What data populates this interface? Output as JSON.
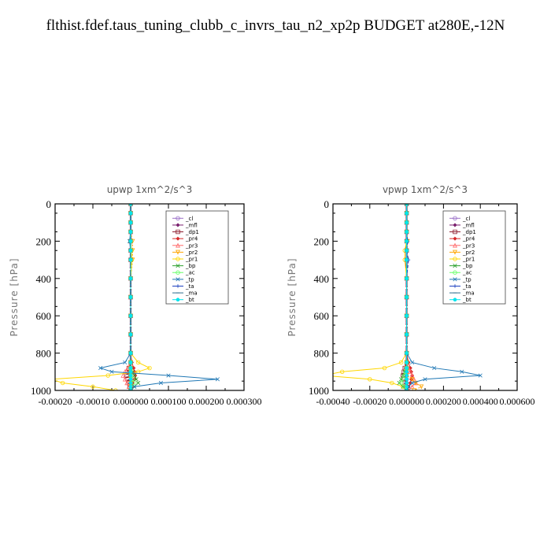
{
  "title": "flthist.fdef.taus_tuning_clubb_c_invrs_tau_n2_xp2p  BUDGET at280E,-12N",
  "chart_data": [
    {
      "type": "line",
      "title": "upwp   1xm^2/s^3",
      "ylabel": "Pressure [hPa]",
      "ylim": [
        1000,
        0
      ],
      "xlim": [
        -0.0002,
        0.0003
      ],
      "xticks": [
        "-0.00020",
        "-0.00010",
        "0.000000",
        "0.000100",
        "0.000200",
        "0.000300"
      ],
      "xtick_values": [
        -0.0002,
        -0.0001,
        0,
        0.0001,
        0.0002,
        0.0003
      ],
      "yticks": [
        "0",
        "200",
        "400",
        "600",
        "800",
        "1000"
      ],
      "ytick_values": [
        0,
        200,
        400,
        600,
        800,
        1000
      ],
      "legend_position": "top-right",
      "levels": [
        0,
        50,
        100,
        150,
        200,
        250,
        300,
        400,
        500,
        600,
        700,
        800,
        850,
        880,
        900,
        920,
        940,
        960,
        980,
        1000
      ],
      "series": [
        {
          "name": "_cl",
          "color": "#9a6fc8",
          "marker": "circle",
          "values": [
            0,
            0,
            0,
            0,
            0,
            0,
            0,
            0,
            0,
            0,
            0,
            0,
            0,
            0,
            0,
            0,
            0,
            0,
            0,
            0
          ]
        },
        {
          "name": "_mfl",
          "color": "#7a1f6e",
          "marker": "diamond",
          "values": [
            0,
            0,
            0,
            0,
            0,
            0,
            0,
            0,
            0,
            0,
            0,
            0,
            0,
            0,
            0,
            0,
            0,
            0,
            0,
            0
          ]
        },
        {
          "name": "_dp1",
          "color": "#8b1a2b",
          "marker": "square",
          "values": [
            0,
            0,
            0,
            0,
            0,
            0,
            0,
            0,
            0,
            0,
            0,
            0,
            0,
            -5e-06,
            -8e-06,
            -1e-05,
            -8e-06,
            -5e-06,
            -3e-06,
            0
          ]
        },
        {
          "name": "_pr4",
          "color": "#d62728",
          "marker": "diamond",
          "values": [
            0,
            0,
            0,
            0,
            0,
            0,
            0,
            0,
            0,
            0,
            0,
            0,
            3e-06,
            8e-06,
            1e-05,
            1.2e-05,
            1e-05,
            6e-06,
            3e-06,
            0
          ]
        },
        {
          "name": "_pr3",
          "color": "#ff6a6a",
          "marker": "triangle",
          "values": [
            0,
            0,
            0,
            0,
            0,
            0,
            0,
            0,
            0,
            0,
            0,
            0,
            0,
            -8e-06,
            -1.5e-05,
            -2e-05,
            -1.5e-05,
            -1e-05,
            -5e-06,
            0
          ]
        },
        {
          "name": "_pr2",
          "color": "#ffa500",
          "marker": "triangle-down",
          "values": [
            0,
            0,
            0,
            0,
            5e-06,
            5e-06,
            5e-06,
            0,
            0,
            0,
            0,
            0,
            0,
            0,
            0,
            0,
            0,
            0,
            0,
            0
          ]
        },
        {
          "name": "_pr1",
          "color": "#ffd700",
          "marker": "circle",
          "values": [
            0,
            0,
            0,
            0,
            0,
            2e-06,
            3e-06,
            0,
            0,
            0,
            0,
            0,
            2e-05,
            5e-05,
            2e-05,
            -6e-05,
            -0.00021,
            -0.00018,
            -0.0001,
            -4e-05
          ]
        },
        {
          "name": "_bp",
          "color": "#2ca02c",
          "marker": "x",
          "values": [
            0,
            0,
            0,
            0,
            0,
            0,
            0,
            0,
            0,
            0,
            0,
            0,
            0,
            0,
            5e-06,
            1e-05,
            1.5e-05,
            2e-05,
            1e-05,
            0
          ]
        },
        {
          "name": "_ac",
          "color": "#66ff66",
          "marker": "circle",
          "values": [
            0,
            0,
            0,
            0,
            0,
            0,
            0,
            0,
            0,
            0,
            0,
            0,
            0,
            0,
            0,
            0,
            5e-06,
            1e-05,
            5e-06,
            0
          ]
        },
        {
          "name": "_tp",
          "color": "#1f77b4",
          "marker": "x",
          "values": [
            0,
            0,
            0,
            0,
            -3e-06,
            0,
            0,
            0,
            0,
            0,
            0,
            0,
            -1.5e-05,
            -8e-05,
            -5e-05,
            0.0001,
            0.00023,
            8e-05,
            1e-05,
            0
          ]
        },
        {
          "name": "_ta",
          "color": "#1a3fbf",
          "marker": "plus",
          "values": [
            0,
            0,
            0,
            0,
            0,
            0,
            0,
            0,
            0,
            0,
            0,
            0,
            0,
            0,
            0,
            0,
            0,
            0,
            0,
            0
          ]
        },
        {
          "name": "_ma",
          "color": "#2f6f8f",
          "marker": "dash",
          "values": [
            0,
            0,
            0,
            0,
            0,
            0,
            0,
            0,
            0,
            0,
            0,
            0,
            0,
            0,
            0,
            0,
            0,
            0,
            0,
            0
          ]
        },
        {
          "name": "_bt",
          "color": "#00e5ee",
          "marker": "dot",
          "values": [
            0,
            0,
            0,
            0,
            0,
            0,
            0,
            0,
            0,
            0,
            0,
            0,
            0,
            0,
            0,
            0,
            0,
            0,
            0,
            0
          ]
        }
      ]
    },
    {
      "type": "line",
      "title": "vpwp   1xm^2/s^3",
      "ylabel": "Pressure [hPa]",
      "ylim": [
        1000,
        0
      ],
      "xlim": [
        -0.0004,
        0.0006
      ],
      "xticks": [
        "-0.00040",
        "-0.00020",
        "0.000000",
        "0.000200",
        "0.000400",
        "0.000600"
      ],
      "xtick_values": [
        -0.0004,
        -0.0002,
        0,
        0.0002,
        0.0004,
        0.0006
      ],
      "yticks": [
        "0",
        "200",
        "400",
        "600",
        "800",
        "1000"
      ],
      "ytick_values": [
        0,
        200,
        400,
        600,
        800,
        1000
      ],
      "legend_position": "top-right",
      "levels": [
        0,
        50,
        100,
        150,
        200,
        250,
        300,
        400,
        500,
        600,
        700,
        800,
        850,
        880,
        900,
        920,
        940,
        960,
        980,
        1000
      ],
      "series": [
        {
          "name": "_cl",
          "color": "#9a6fc8",
          "marker": "circle",
          "values": [
            0,
            0,
            0,
            0,
            0,
            0,
            0,
            0,
            0,
            0,
            0,
            0,
            0,
            0,
            0,
            0,
            0,
            0,
            0,
            0
          ]
        },
        {
          "name": "_mfl",
          "color": "#7a1f6e",
          "marker": "diamond",
          "values": [
            0,
            0,
            0,
            0,
            0,
            0,
            0,
            0,
            0,
            0,
            0,
            0,
            0,
            0,
            0,
            0,
            0,
            0,
            0,
            0
          ]
        },
        {
          "name": "_dp1",
          "color": "#8b1a2b",
          "marker": "square",
          "values": [
            0,
            0,
            0,
            0,
            0,
            0,
            0,
            0,
            0,
            0,
            0,
            0,
            0,
            -1e-05,
            -1.5e-05,
            -2e-05,
            -1.5e-05,
            -1e-05,
            -5e-06,
            0
          ]
        },
        {
          "name": "_pr4",
          "color": "#d62728",
          "marker": "diamond",
          "values": [
            0,
            0,
            0,
            0,
            0,
            0,
            0,
            0,
            0,
            0,
            0,
            0,
            1e-05,
            2e-05,
            2.5e-05,
            3e-05,
            2.5e-05,
            2e-05,
            1e-05,
            0
          ]
        },
        {
          "name": "_pr3",
          "color": "#ff6a6a",
          "marker": "triangle",
          "values": [
            0,
            0,
            0,
            0,
            0,
            0,
            0,
            0,
            0,
            0,
            0,
            0,
            0,
            1e-05,
            2e-05,
            3e-05,
            4e-05,
            5e-05,
            3e-05,
            1e-05
          ]
        },
        {
          "name": "_pr2",
          "color": "#ffa500",
          "marker": "triangle-down",
          "values": [
            0,
            0,
            0,
            0,
            5e-06,
            0,
            0,
            0,
            0,
            0,
            0,
            0,
            0,
            0,
            0,
            0,
            3e-05,
            5e-05,
            8e-05,
            4e-05
          ]
        },
        {
          "name": "_pr1",
          "color": "#ffd700",
          "marker": "circle",
          "values": [
            0,
            0,
            0,
            0,
            0,
            -1e-05,
            -1e-05,
            0,
            0,
            0,
            0,
            0,
            -3e-05,
            -0.00012,
            -0.00035,
            -0.00045,
            -0.0002,
            -8e-05,
            -2e-05,
            0
          ]
        },
        {
          "name": "_bp",
          "color": "#2ca02c",
          "marker": "x",
          "values": [
            0,
            0,
            0,
            0,
            0,
            0,
            0,
            0,
            0,
            0,
            0,
            0,
            0,
            0,
            -1e-05,
            -2e-05,
            -3e-05,
            -4e-05,
            -2e-05,
            0
          ]
        },
        {
          "name": "_ac",
          "color": "#66ff66",
          "marker": "circle",
          "values": [
            0,
            0,
            0,
            0,
            0,
            0,
            0,
            0,
            0,
            0,
            0,
            0,
            0,
            0,
            -5e-06,
            -1e-05,
            -2e-05,
            -3e-05,
            -1e-05,
            0
          ]
        },
        {
          "name": "_tp",
          "color": "#1f77b4",
          "marker": "x",
          "values": [
            0,
            0,
            0,
            0,
            0,
            0,
            0,
            0,
            0,
            0,
            0,
            0,
            3e-05,
            0.00015,
            0.0003,
            0.0004,
            0.0001,
            3e-05,
            1e-05,
            0
          ]
        },
        {
          "name": "_ta",
          "color": "#1a3fbf",
          "marker": "plus",
          "values": [
            0,
            0,
            0,
            0,
            5e-06,
            0,
            1e-05,
            0,
            0,
            0,
            0,
            0,
            0,
            0,
            0,
            0,
            0,
            0,
            0,
            0
          ]
        },
        {
          "name": "_ma",
          "color": "#2f6f8f",
          "marker": "dash",
          "values": [
            0,
            0,
            0,
            0,
            0,
            0,
            0,
            0,
            0,
            0,
            0,
            0,
            0,
            0,
            0,
            0,
            0,
            0,
            0,
            0
          ]
        },
        {
          "name": "_bt",
          "color": "#00e5ee",
          "marker": "dot",
          "values": [
            0,
            0,
            0,
            0,
            0,
            0,
            0,
            0,
            0,
            0,
            0,
            0,
            0,
            0,
            0,
            0,
            0,
            0,
            0,
            0
          ]
        }
      ]
    }
  ]
}
